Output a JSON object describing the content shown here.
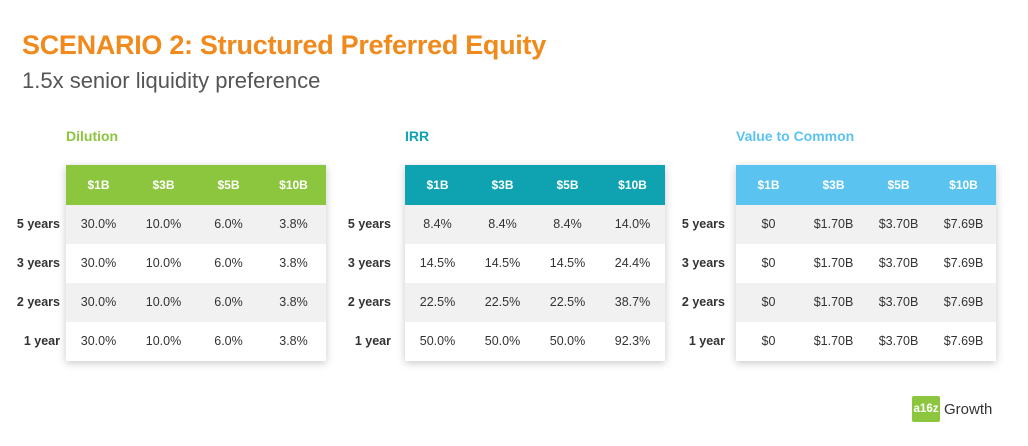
{
  "header": {
    "title": "SCENARIO 2: Structured Preferred Equity",
    "subtitle": "1.5x senior liquidity preference"
  },
  "row_labels": [
    "5 years",
    "3 years",
    "2 years",
    "1 year"
  ],
  "tables": [
    {
      "label": "Dilution",
      "accent": "#8cc63f",
      "columns": [
        "$1B",
        "$3B",
        "$5B",
        "$10B"
      ],
      "rows": [
        [
          "30.0%",
          "10.0%",
          "6.0%",
          "3.8%"
        ],
        [
          "30.0%",
          "10.0%",
          "6.0%",
          "3.8%"
        ],
        [
          "30.0%",
          "10.0%",
          "6.0%",
          "3.8%"
        ],
        [
          "30.0%",
          "10.0%",
          "6.0%",
          "3.8%"
        ]
      ]
    },
    {
      "label": "IRR",
      "accent": "#0fa3b1",
      "columns": [
        "$1B",
        "$3B",
        "$5B",
        "$10B"
      ],
      "rows": [
        [
          "8.4%",
          "8.4%",
          "8.4%",
          "14.0%"
        ],
        [
          "14.5%",
          "14.5%",
          "14.5%",
          "24.4%"
        ],
        [
          "22.5%",
          "22.5%",
          "22.5%",
          "38.7%"
        ],
        [
          "50.0%",
          "50.0%",
          "50.0%",
          "92.3%"
        ]
      ]
    },
    {
      "label": "Value to Common",
      "accent": "#5bc3ef",
      "columns": [
        "$1B",
        "$3B",
        "$5B",
        "$10B"
      ],
      "rows": [
        [
          "$0",
          "$1.70B",
          "$3.70B",
          "$7.69B"
        ],
        [
          "$0",
          "$1.70B",
          "$3.70B",
          "$7.69B"
        ],
        [
          "$0",
          "$1.70B",
          "$3.70B",
          "$7.69B"
        ],
        [
          "$0",
          "$1.70B",
          "$3.70B",
          "$7.69B"
        ]
      ]
    }
  ],
  "logo": {
    "mark": "a16z",
    "word": "Growth"
  }
}
